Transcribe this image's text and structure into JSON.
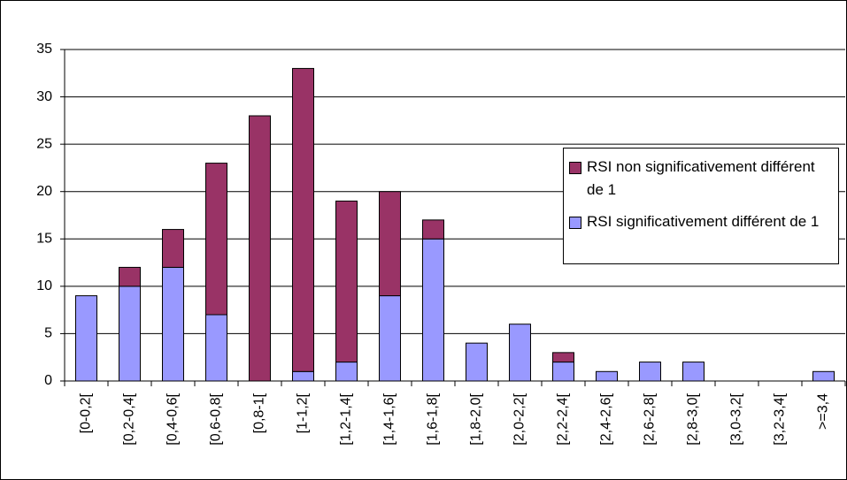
{
  "chart_data": {
    "type": "stacked-bar",
    "categories": [
      "[0-0,2[",
      "[0,2-0,4[",
      "[0,4-0,6[",
      "[0,6-0,8[",
      "[0,8-1[",
      "[1-1,2[",
      "[1,2-1,4[",
      "[1,4-1,6[",
      "[1,6-1,8[",
      "[1,8-2,0[",
      "[2,0-2,2[",
      "[2,2-2,4[",
      "[2,4-2,6[",
      "[2,6-2,8[",
      "[2,8-3,0[",
      "[3,0-3,2[",
      "[3,2-3,4[",
      ">=3,4"
    ],
    "series": [
      {
        "name": "RSI significativement différent de 1",
        "color": "#9999ff",
        "values": [
          9,
          10,
          12,
          7,
          0,
          1,
          2,
          9,
          15,
          4,
          6,
          2,
          1,
          2,
          2,
          0,
          0,
          1
        ]
      },
      {
        "name": "RSI non significativement différent de 1",
        "color": "#993366",
        "values": [
          0,
          2,
          4,
          16,
          28,
          32,
          17,
          11,
          2,
          0,
          0,
          1,
          0,
          0,
          0,
          0,
          0,
          0
        ]
      }
    ],
    "ylim": [
      0,
      35
    ],
    "yticks": [
      0,
      5,
      10,
      15,
      20,
      25,
      30,
      35
    ],
    "grid": true,
    "legend": "right"
  }
}
